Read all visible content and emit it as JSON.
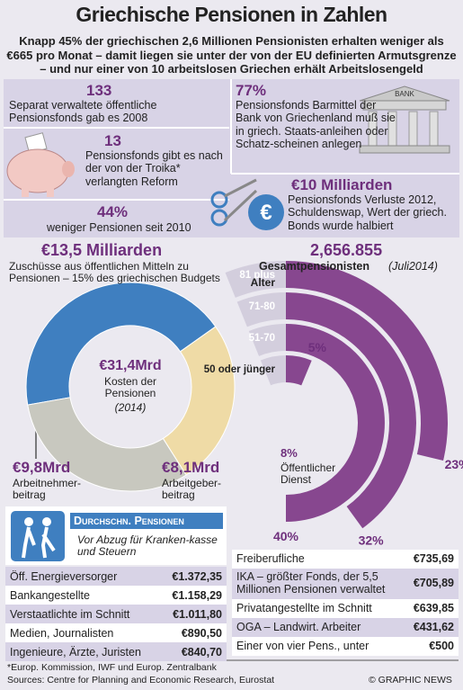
{
  "header": {
    "title": "Griechische Pensionen in Zahlen",
    "subtitle": "Knapp 45% der griechischen 2,6 Millionen Pensionisten erhalten weniger als €665 pro Monat – damit liegen sie unter der von der EU definierten Armutsgrenze – und nur einer von 10 arbeitslosen Griechen erhält Arbeitslosengeld"
  },
  "facts": [
    {
      "value": "133",
      "text": "Separat verwaltete öffentliche Pensionsfonds gab es 2008"
    },
    {
      "value": "77%",
      "text": "Pensionsfonds Barmittel der Bank von Griechenland muß sie in griech. Staats-anleihen oder Schatz-scheinen anlegen"
    },
    {
      "value": "13",
      "text": "Pensionsfonds gibt es nach der von der Troika* verlangten Reform"
    },
    {
      "value": "€10 Milliarden",
      "text": "Pensionsfonds Verluste 2012, Schuldenswap, Wert der griech. Bonds wurde halbiert"
    },
    {
      "value": "44%",
      "text": "weniger Pensionen seit 2010"
    }
  ],
  "chart_data": [
    {
      "type": "donut",
      "categories": [
        "Zuschüsse aus öffentlichen Mitteln zu Pensionen – 15% des griechischen Budgets",
        "Arbeitgeber-\nbeitrag",
        "Arbeitnehmer-\nbeitrag"
      ],
      "values": [
        13.5,
        8.1,
        9.8
      ],
      "value_labels": [
        "€13,5 Milliarden",
        "€8,1Mrd",
        "€9,8Mrd"
      ],
      "colors": [
        "#3f7fc0",
        "#efdba6",
        "#c8c8bf"
      ],
      "total_label": "€31,4Mrd",
      "center_text": "Kosten der Pensionen",
      "center_note": "(2014)"
    },
    {
      "type": "radial_bar",
      "title": "2,656.855",
      "subtitle": "Gesamtpensionisten",
      "note": "(Juli2014)",
      "axis_label": "Alter",
      "categories": [
        "81 plus",
        "71-80",
        "51-70",
        "50 oder jünger"
      ],
      "values": [
        23,
        32,
        40,
        5
      ],
      "value_labels": [
        "23%",
        "32%",
        "40%",
        "5%"
      ],
      "color": "#87478f",
      "annotation": {
        "value": "8%",
        "text": "Öffentlicher Dienst"
      }
    }
  ],
  "pensions_table": {
    "title": "Durchschn. Pensionen",
    "subtitle": "Vor Abzug für Kranken-kasse und Steuern",
    "left_rows": [
      [
        "Öff. Energieversorger",
        "€1.372,35"
      ],
      [
        "Bankangestellte",
        "€1.158,29"
      ],
      [
        "Verstaatlichte im Schnitt",
        "€1.011,80"
      ],
      [
        "Medien, Journalisten",
        "€890,50"
      ],
      [
        "Ingenieure, Ärzte, Juristen",
        "€840,70"
      ]
    ],
    "right_rows": [
      [
        "Freiberufliche",
        "€735,69"
      ],
      [
        "IKA – größter Fonds, der 5,5 Millionen Pensionen verwaltet",
        "€705,89"
      ],
      [
        "Privatangestellte im Schnitt",
        "€639,85"
      ],
      [
        "OGA – Landwirt. Arbeiter",
        "€431,62"
      ],
      [
        "Einer von vier Pens., unter",
        "€500"
      ]
    ]
  },
  "footer": {
    "note": "*Europ. Kommission, IWF und Europ. Zentralbank",
    "sources": "Sources: Centre for Planning and Economic Research, Eurostat",
    "credit": "© GRAPHIC NEWS"
  }
}
